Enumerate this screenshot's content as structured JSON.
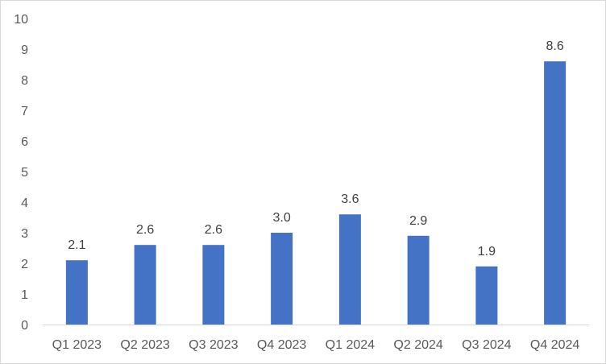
{
  "chart_data": {
    "type": "bar",
    "categories": [
      "Q1 2023",
      "Q2 2023",
      "Q3 2023",
      "Q4 2023",
      "Q1 2024",
      "Q2 2024",
      "Q3 2024",
      "Q4 2024"
    ],
    "values": [
      2.1,
      2.6,
      2.6,
      3.0,
      3.6,
      2.9,
      1.9,
      8.6
    ],
    "data_labels": [
      "2.1",
      "2.6",
      "2.6",
      "3.0",
      "3.6",
      "2.9",
      "1.9",
      "8.6"
    ],
    "y_ticks": [
      "0",
      "1",
      "2",
      "3",
      "4",
      "5",
      "6",
      "7",
      "8",
      "9",
      "10"
    ],
    "ylim": [
      0,
      10
    ],
    "grid": false,
    "legend": "none",
    "bar_color": "#4472C4"
  }
}
